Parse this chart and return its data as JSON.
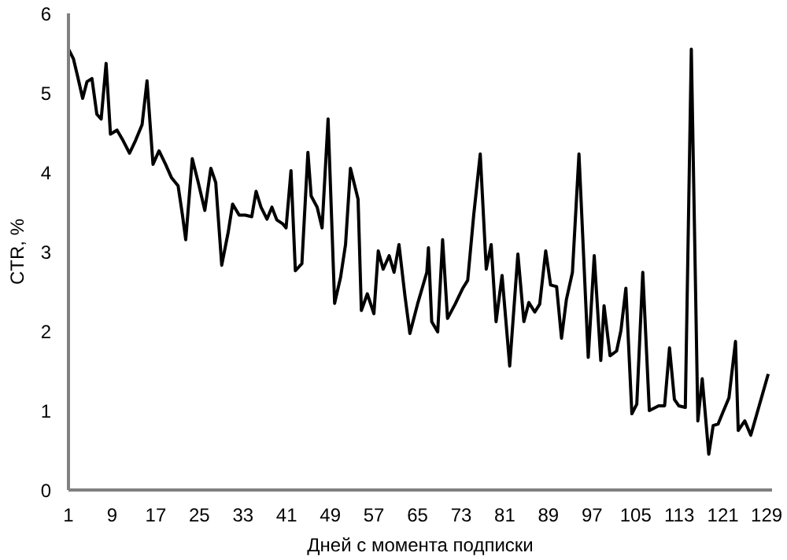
{
  "chart_data": {
    "type": "line",
    "xlabel": "Дней с момента подписки",
    "ylabel": "CTR, %",
    "xlim": [
      1,
      130
    ],
    "xticks": [
      1,
      9,
      17,
      25,
      33,
      41,
      49,
      57,
      65,
      73,
      81,
      89,
      97,
      105,
      113,
      121,
      129
    ],
    "ylim": [
      0,
      6
    ],
    "yticks": [
      0,
      1,
      2,
      3,
      4,
      5,
      6
    ],
    "marker": "none",
    "line_style": "solid",
    "series": [
      {
        "color": "#000000",
        "x": [
          1.0,
          1.9,
          2.7,
          3.6,
          4.4,
          5.3,
          6.2,
          7.0,
          7.9,
          8.7,
          9.9,
          11.0,
          12.2,
          13.3,
          14.5,
          15.4,
          16.5,
          17.6,
          18.8,
          19.9,
          21.1,
          21.9,
          22.5,
          23.7,
          24.8,
          26.0,
          27.1,
          28.0,
          29.1,
          30.3,
          31.1,
          32.3,
          33.4,
          34.6,
          35.4,
          36.3,
          37.4,
          38.3,
          39.2,
          40.3,
          40.9,
          41.8,
          42.6,
          43.8,
          44.9,
          45.5,
          46.6,
          47.5,
          48.6,
          49.8,
          50.9,
          51.8,
          52.7,
          54.1,
          54.7,
          55.8,
          57.0,
          57.8,
          58.7,
          59.8,
          60.7,
          61.6,
          62.7,
          63.6,
          65.0,
          66.7,
          67.0,
          67.6,
          68.7,
          69.6,
          70.5,
          71.9,
          73.3,
          74.2,
          75.3,
          76.5,
          77.6,
          78.5,
          79.4,
          80.5,
          81.9,
          83.4,
          84.5,
          85.4,
          86.5,
          87.4,
          88.5,
          89.4,
          90.5,
          91.4,
          92.3,
          93.4,
          94.6,
          96.3,
          97.4,
          98.6,
          99.2,
          100.3,
          101.5,
          102.3,
          103.2,
          104.3,
          105.2,
          106.3,
          107.5,
          109.2,
          110.3,
          111.2,
          112.1,
          112.9,
          114.1,
          115.2,
          116.4,
          117.2,
          118.4,
          119.2,
          120.1,
          121.0,
          122.1,
          123.3,
          123.8,
          125.0,
          126.1,
          129.3
        ],
        "values": [
          5.55,
          5.43,
          5.2,
          4.93,
          5.14,
          5.18,
          4.73,
          4.67,
          5.37,
          4.48,
          4.53,
          4.4,
          4.24,
          4.4,
          4.6,
          5.15,
          4.1,
          4.27,
          4.1,
          3.93,
          3.83,
          3.46,
          3.15,
          4.17,
          3.87,
          3.52,
          4.05,
          3.87,
          2.83,
          3.25,
          3.6,
          3.46,
          3.46,
          3.44,
          3.76,
          3.56,
          3.41,
          3.56,
          3.4,
          3.35,
          3.3,
          4.02,
          2.76,
          2.85,
          4.25,
          3.7,
          3.56,
          3.3,
          4.67,
          2.35,
          2.68,
          3.09,
          4.05,
          3.66,
          2.26,
          2.47,
          2.22,
          3.01,
          2.78,
          2.95,
          2.74,
          3.09,
          2.44,
          1.97,
          2.34,
          2.74,
          3.05,
          2.12,
          1.99,
          3.15,
          2.16,
          2.34,
          2.54,
          2.64,
          3.46,
          4.23,
          2.78,
          3.09,
          2.12,
          2.7,
          1.56,
          2.97,
          2.12,
          2.36,
          2.24,
          2.34,
          3.01,
          2.58,
          2.56,
          1.91,
          2.4,
          2.74,
          4.23,
          1.67,
          2.95,
          1.63,
          2.32,
          1.69,
          1.75,
          2.01,
          2.54,
          0.96,
          1.08,
          2.74,
          1.0,
          1.06,
          1.06,
          1.79,
          1.14,
          1.06,
          1.04,
          5.55,
          0.87,
          1.4,
          0.45,
          0.81,
          0.83,
          0.98,
          1.16,
          1.87,
          0.75,
          0.87,
          0.69,
          1.46
        ]
      }
    ]
  }
}
